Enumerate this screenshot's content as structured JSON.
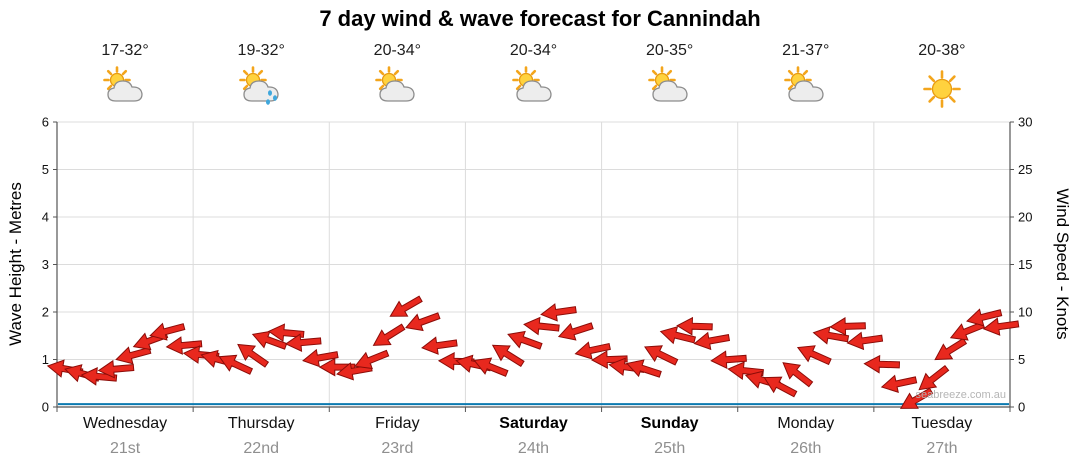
{
  "title": "7 day wind & wave forecast for Cannindah",
  "watermark": "seabreeze.com.au",
  "axes": {
    "left_title": "Wave Height - Metres",
    "right_title": "Wind Speed - Knots",
    "left_ticks": [
      0,
      1,
      2,
      3,
      4,
      5,
      6
    ],
    "right_ticks": [
      0,
      5,
      10,
      15,
      20,
      25,
      30
    ]
  },
  "colors": {
    "arrow_fill": "#e8281e",
    "arrow_stroke": "#8c0c08",
    "wave_line": "#0b7ab0",
    "grid": "#dcdcdc",
    "axis": "#555555",
    "date_text": "#8f8f8f"
  },
  "chart_data": {
    "type": "line",
    "subtype": "wind-arrow-timeseries",
    "title": "7 day wind & wave forecast for Cannindah",
    "ylim_left_wave_m": [
      0,
      6
    ],
    "ylim_right_knots": [
      0,
      30
    ],
    "interval_hours": 3,
    "wave_height_m": 0.06,
    "legend": "off",
    "grid": "on",
    "days": [
      {
        "label": "Wednesday",
        "date": "21st",
        "temp": "17-32°",
        "icon": "sun-cloud",
        "weekend": false,
        "wind_knots": [
          4.0,
          3.5,
          3.2,
          4.0,
          5.5,
          7.0,
          8.0,
          6.5
        ],
        "wind_dir_deg": [
          190,
          195,
          185,
          175,
          165,
          160,
          165,
          175
        ]
      },
      {
        "label": "Thursday",
        "date": "22nd",
        "temp": "19-32°",
        "icon": "sun-cloud-rain",
        "weekend": false,
        "wind_knots": [
          5.5,
          5.0,
          4.5,
          5.5,
          7.0,
          7.8,
          6.8,
          5.2
        ],
        "wind_dir_deg": [
          185,
          195,
          205,
          215,
          200,
          185,
          175,
          170
        ]
      },
      {
        "label": "Friday",
        "date": "23rd",
        "temp": "20-34°",
        "icon": "sun-cloud",
        "weekend": false,
        "wind_knots": [
          4.2,
          3.8,
          5.0,
          7.5,
          10.5,
          9.0,
          6.5,
          4.8
        ],
        "wind_dir_deg": [
          180,
          170,
          158,
          148,
          150,
          160,
          172,
          182
        ]
      },
      {
        "label": "Saturday",
        "date": "24th",
        "temp": "20-34°",
        "icon": "sun-cloud",
        "weekend": true,
        "wind_knots": [
          4.5,
          4.2,
          5.5,
          7.0,
          8.5,
          10.0,
          8.0,
          6.0
        ],
        "wind_dir_deg": [
          192,
          202,
          212,
          200,
          186,
          172,
          162,
          168
        ]
      },
      {
        "label": "Sunday",
        "date": "25th",
        "temp": "20-35°",
        "icon": "sun-cloud",
        "weekend": true,
        "wind_knots": [
          5.0,
          4.2,
          4.0,
          5.5,
          7.5,
          8.5,
          7.0,
          5.0
        ],
        "wind_dir_deg": [
          178,
          188,
          198,
          206,
          194,
          182,
          170,
          176
        ]
      },
      {
        "label": "Monday",
        "date": "26th",
        "temp": "21-37°",
        "icon": "sun-cloud",
        "weekend": false,
        "wind_knots": [
          3.8,
          2.8,
          2.2,
          3.5,
          5.5,
          7.5,
          8.5,
          7.0
        ],
        "wind_dir_deg": [
          186,
          196,
          208,
          218,
          204,
          190,
          178,
          172
        ]
      },
      {
        "label": "Tuesday",
        "date": "27th",
        "temp": "20-38°",
        "icon": "sunny",
        "weekend": false,
        "wind_knots": [
          4.5,
          2.5,
          0.8,
          3.0,
          6.0,
          8.0,
          9.5,
          8.5
        ],
        "wind_dir_deg": [
          182,
          168,
          150,
          142,
          148,
          158,
          166,
          172
        ]
      }
    ]
  }
}
